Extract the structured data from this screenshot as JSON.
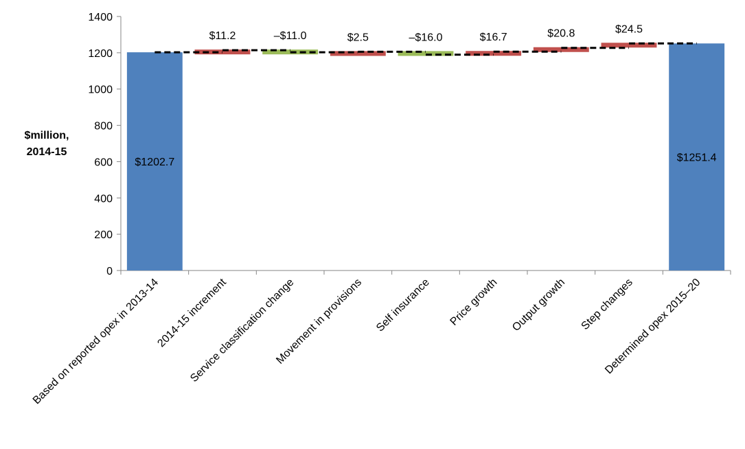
{
  "chart_data": {
    "type": "bar",
    "subtype": "waterfall",
    "title": "",
    "ylabel_lines": [
      "$million,",
      "2014-15"
    ],
    "xlabel": "",
    "ylim": [
      0,
      1400
    ],
    "yticks": [
      0,
      200,
      400,
      600,
      800,
      1000,
      1200,
      1400
    ],
    "ytick_labels": [
      "0",
      "200",
      "400",
      "600",
      "800",
      "1000",
      "1200",
      "1400"
    ],
    "grid": false,
    "legend": "none",
    "categories": [
      "Based on reported opex in 2013-14",
      "2014-15 increment",
      "Service classification change",
      "Movement in provisions",
      "Self insurance",
      "Price growth",
      "Output growth",
      "Step changes",
      "Determined opex 2015–20"
    ],
    "bar_kind": [
      "total",
      "delta",
      "delta",
      "delta",
      "delta",
      "delta",
      "delta",
      "delta",
      "total"
    ],
    "values": [
      1202.7,
      11.2,
      -11.0,
      2.5,
      -16.0,
      16.7,
      20.8,
      24.5,
      1251.4
    ],
    "value_labels": [
      "$1202.7",
      "$11.2",
      "–$11.0",
      "$2.5",
      "–$16.0",
      "$16.7",
      "$20.8",
      "$24.5",
      "$1251.4"
    ],
    "colors": {
      "total": "#4f81bd",
      "increase": "#c0504d",
      "decrease": "#9bbb59",
      "connector": "#000000",
      "axis": "#868686"
    }
  }
}
